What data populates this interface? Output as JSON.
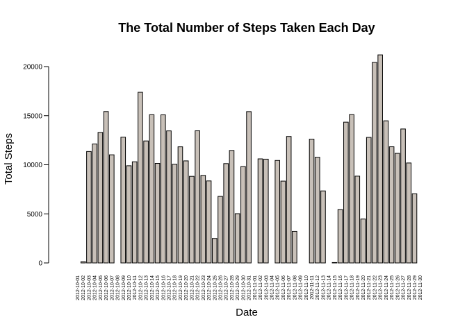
{
  "chart_data": {
    "type": "bar",
    "title": "The Total Number of Steps Taken Each Day",
    "xlabel": "Date",
    "ylabel": "Total Steps",
    "ylim": [
      0,
      21500
    ],
    "yticks": [
      "0",
      "5000",
      "10000",
      "15000",
      "20000"
    ],
    "bar_color": "#c8c0b8",
    "grid": false,
    "categories": [
      "2012-10-01",
      "2012-10-02",
      "2012-10-03",
      "2012-10-04",
      "2012-10-05",
      "2012-10-06",
      "2012-10-07",
      "2012-10-08",
      "2012-10-09",
      "2012-10-10",
      "2012-10-11",
      "2012-10-12",
      "2012-10-13",
      "2012-10-14",
      "2012-10-15",
      "2012-10-16",
      "2012-10-17",
      "2012-10-18",
      "2012-10-19",
      "2012-10-20",
      "2012-10-21",
      "2012-10-22",
      "2012-10-23",
      "2012-10-24",
      "2012-10-25",
      "2012-10-26",
      "2012-10-27",
      "2012-10-28",
      "2012-10-29",
      "2012-10-30",
      "2012-10-31",
      "2012-11-01",
      "2012-11-02",
      "2012-11-03",
      "2012-11-04",
      "2012-11-05",
      "2012-11-06",
      "2012-11-07",
      "2012-11-08",
      "2012-11-09",
      "2012-11-10",
      "2012-11-11",
      "2012-11-12",
      "2012-11-13",
      "2012-11-14",
      "2012-11-15",
      "2012-11-16",
      "2012-11-17",
      "2012-11-18",
      "2012-11-19",
      "2012-11-20",
      "2012-11-21",
      "2012-11-22",
      "2012-11-23",
      "2012-11-24",
      "2012-11-25",
      "2012-11-26",
      "2012-11-27",
      "2012-11-28",
      "2012-11-29",
      "2012-11-30"
    ],
    "values": [
      0,
      126,
      11352,
      12116,
      13294,
      15420,
      11015,
      0,
      12811,
      9900,
      10304,
      17382,
      12426,
      15098,
      10139,
      15084,
      13452,
      10056,
      11829,
      10395,
      8821,
      13460,
      8918,
      8355,
      2492,
      6778,
      10119,
      11458,
      5018,
      9819,
      15414,
      0,
      10600,
      10571,
      0,
      10439,
      8334,
      12883,
      3219,
      0,
      0,
      12608,
      10765,
      7336,
      0,
      41,
      5441,
      14339,
      15110,
      8841,
      4472,
      12787,
      20427,
      21194,
      14478,
      11834,
      11162,
      13646,
      10183,
      7047,
      0
    ]
  }
}
